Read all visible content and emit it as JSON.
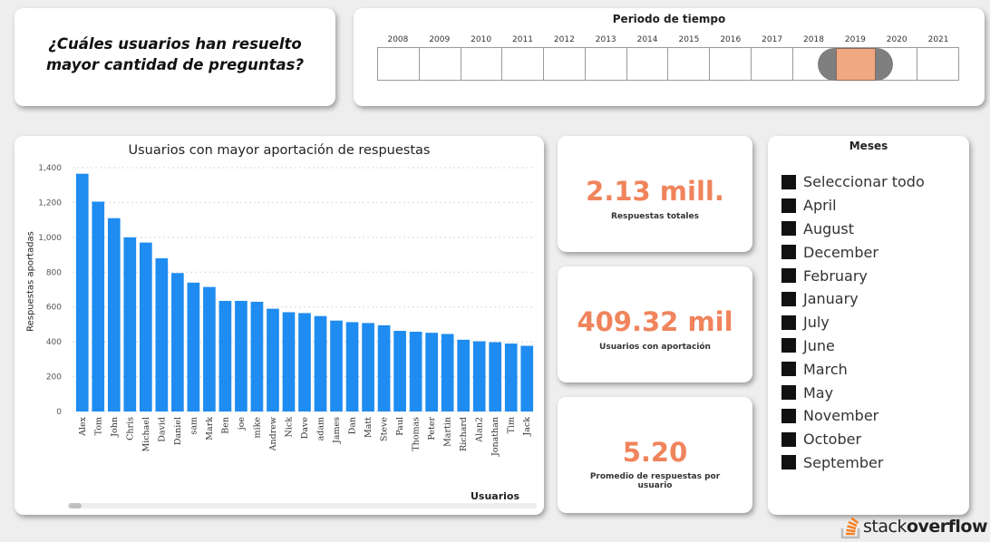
{
  "question": "¿Cuáles usuarios han resuelto mayor cantidad de preguntas?",
  "period": {
    "title": "Periodo de tiempo",
    "years": [
      "2008",
      "2009",
      "2010",
      "2011",
      "2012",
      "2013",
      "2014",
      "2015",
      "2016",
      "2017",
      "2018",
      "2019",
      "2020",
      "2021"
    ],
    "selected_years": [
      "2019"
    ]
  },
  "colors": {
    "bar": "#1e8cf0",
    "kpi": "#f0845c",
    "range": "#f0a880"
  },
  "chart_data": {
    "type": "bar",
    "title": "Usuarios con mayor aportación de respuestas",
    "xlabel": "Usuarios",
    "ylabel": "Respuestas aportadas",
    "ylim": [
      0,
      1400
    ],
    "yticks": [
      "0",
      "200",
      "400",
      "600",
      "800",
      "1,000",
      "1,200",
      "1,400"
    ],
    "grid": true,
    "categories": [
      "Alex",
      "Tom",
      "John",
      "Chris",
      "Michael",
      "David",
      "Daniel",
      "sam",
      "Mark",
      "Ben",
      "joe",
      "mike",
      "Andrew",
      "Nick",
      "Dave",
      "adam",
      "James",
      "Dan",
      "Matt",
      "Steve",
      "Paul",
      "Thomas",
      "Peter",
      "Martin",
      "Richard",
      "Alan2",
      "Jonathan",
      "Tim",
      "Jack"
    ],
    "values": [
      1365,
      1205,
      1110,
      1000,
      970,
      880,
      795,
      740,
      715,
      635,
      635,
      630,
      590,
      570,
      565,
      548,
      522,
      513,
      508,
      495,
      463,
      458,
      452,
      445,
      412,
      403,
      398,
      390,
      377
    ]
  },
  "kpis": [
    {
      "value": "2.13 mill.",
      "label": "Respuestas totales"
    },
    {
      "value": "409.32 mil",
      "label": "Usuarios con aportación"
    },
    {
      "value": "5.20",
      "label": "Promedio de respuestas por usuario"
    }
  ],
  "months": {
    "title": "Meses",
    "items": [
      "Seleccionar todo",
      "April",
      "August",
      "December",
      "February",
      "January",
      "July",
      "June",
      "March",
      "May",
      "November",
      "October",
      "September"
    ]
  },
  "logo": {
    "part1": "stack",
    "part2": "overflow",
    "icon": "stackoverflow-icon"
  }
}
